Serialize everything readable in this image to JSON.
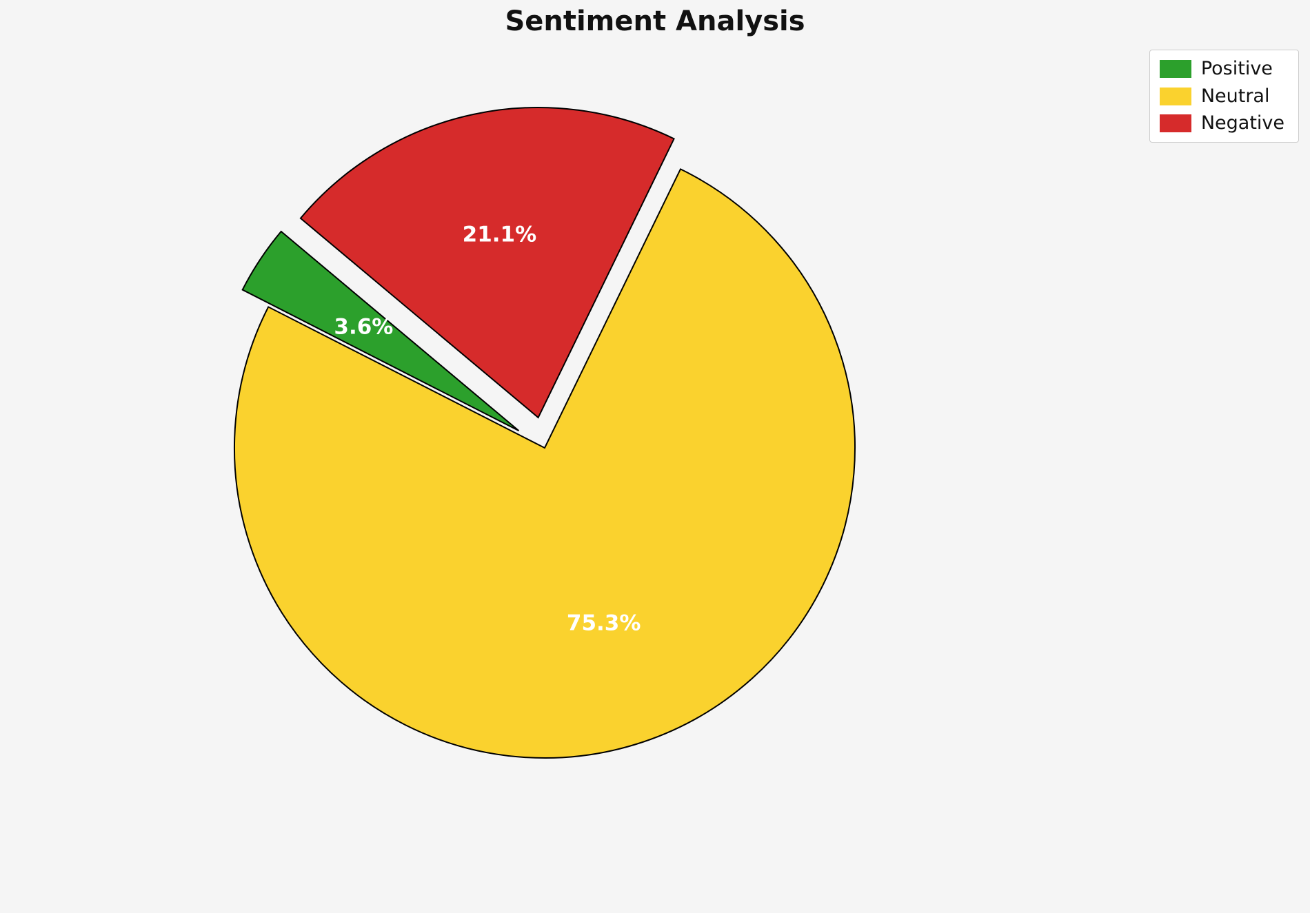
{
  "chart_data": {
    "type": "pie",
    "title": "Sentiment Analysis",
    "labels": [
      "Positive",
      "Neutral",
      "Negative"
    ],
    "values": [
      3.6,
      75.3,
      21.1
    ],
    "percent_labels": [
      "3.6%",
      "75.3%",
      "21.1%"
    ],
    "colors": [
      "#2ca02c",
      "#fad22e",
      "#d62b2b"
    ],
    "explode": [
      0.1,
      0,
      0.1
    ],
    "start_angle": 140,
    "counterclockwise": true,
    "edge_color": "#000000",
    "pct_text_color": "#ffffff",
    "background_color": "#f5f5f5",
    "legend_position": "upper right",
    "legend_entries": [
      {
        "label": "Positive",
        "color": "#2ca02c"
      },
      {
        "label": "Neutral",
        "color": "#fad22e"
      },
      {
        "label": "Negative",
        "color": "#d62b2b"
      }
    ]
  }
}
